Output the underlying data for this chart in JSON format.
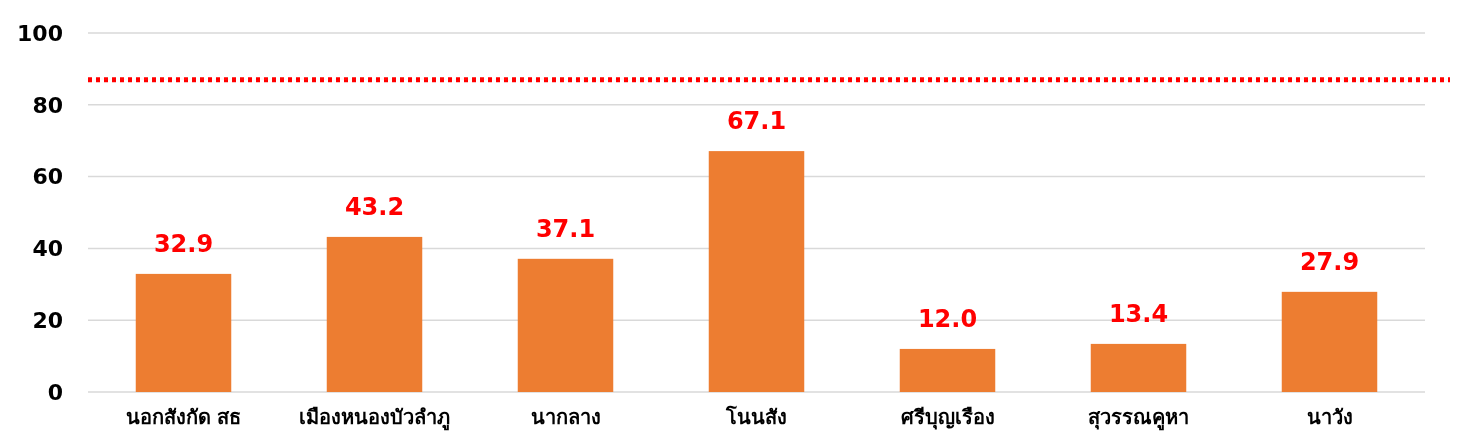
{
  "chart_data": {
    "type": "bar",
    "categories": [
      "นอกสังกัด สธ",
      "เมืองหนองบัวลำภู",
      "นากลาง",
      "โนนสัง",
      "ศรีบุญเรือง",
      "สุวรรณคูหา",
      "นาวัง"
    ],
    "values": [
      32.9,
      43.2,
      37.1,
      67.1,
      12.0,
      13.4,
      27.9
    ],
    "value_labels": [
      "32.9",
      "43.2",
      "37.1",
      "67.1",
      "12.0",
      "13.4",
      "27.9"
    ],
    "color": "#ed7d31",
    "ylim": [
      0,
      100
    ],
    "yticks": [
      0,
      20,
      40,
      60,
      80,
      100
    ],
    "grid": "y",
    "ref_lines": [
      {
        "axis": "y",
        "value": 87,
        "color": "#ff0000",
        "line_style": "dotted"
      }
    ]
  }
}
